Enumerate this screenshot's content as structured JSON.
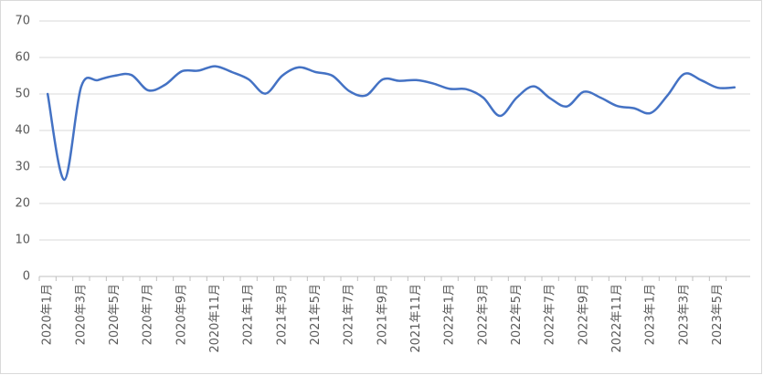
{
  "chart_data": {
    "type": "line",
    "categories": [
      "2020年1月",
      null,
      "2020年3月",
      null,
      "2020年5月",
      null,
      "2020年7月",
      null,
      "2020年9月",
      null,
      "2020年11月",
      null,
      "2021年1月",
      null,
      "2021年3月",
      null,
      "2021年5月",
      null,
      "2021年7月",
      null,
      "2021年9月",
      null,
      "2021年11月",
      null,
      "2022年1月",
      null,
      "2022年3月",
      null,
      "2022年5月",
      null,
      "2022年7月",
      null,
      "2022年9月",
      null,
      "2022年11月",
      null,
      "2023年1月",
      null,
      "2023年3月",
      null,
      "2023年5月",
      null
    ],
    "series": [
      {
        "color": "#4472c4",
        "values": [
          50,
          26.5,
          52,
          53.8,
          55,
          55.2,
          51,
          52.5,
          56.2,
          56.4,
          57.6,
          56,
          54,
          50.1,
          55,
          57.3,
          56,
          55,
          50.8,
          49.6,
          54,
          53.6,
          53.8,
          52.9,
          51.4,
          51.3,
          49,
          44,
          49,
          52.1,
          48.8,
          46.6,
          50.6,
          49,
          46.7,
          46.1,
          44.8,
          49.6,
          55.5,
          53.8,
          51.7,
          51.8
        ]
      }
    ],
    "ylim": [
      0,
      70
    ],
    "yticks": [
      0,
      10,
      20,
      30,
      40,
      50,
      60,
      70
    ],
    "grid": true
  }
}
